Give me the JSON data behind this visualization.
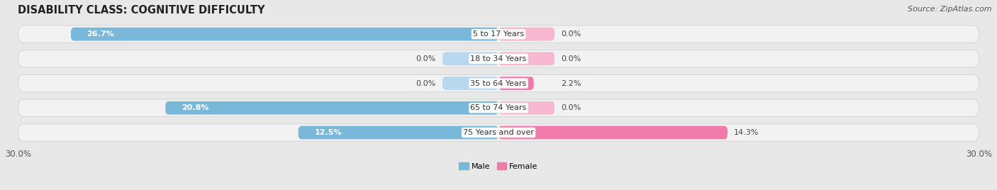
{
  "title": "DISABILITY CLASS: COGNITIVE DIFFICULTY",
  "source": "Source: ZipAtlas.com",
  "categories": [
    "5 to 17 Years",
    "18 to 34 Years",
    "35 to 64 Years",
    "65 to 74 Years",
    "75 Years and over"
  ],
  "male_values": [
    26.7,
    0.0,
    0.0,
    20.8,
    12.5
  ],
  "female_values": [
    0.0,
    0.0,
    2.2,
    0.0,
    14.3
  ],
  "male_color": "#7ab8d9",
  "female_color": "#f07aaa",
  "male_color_light": "#b8d8ed",
  "female_color_light": "#f5b8d0",
  "xlim": 30.0,
  "zero_stub": 3.5,
  "background_color": "#e8e8e8",
  "row_bg_color": "#f2f2f2",
  "title_fontsize": 10.5,
  "label_fontsize": 8.0,
  "cat_fontsize": 8.0,
  "tick_fontsize": 8.5,
  "source_fontsize": 8.0
}
